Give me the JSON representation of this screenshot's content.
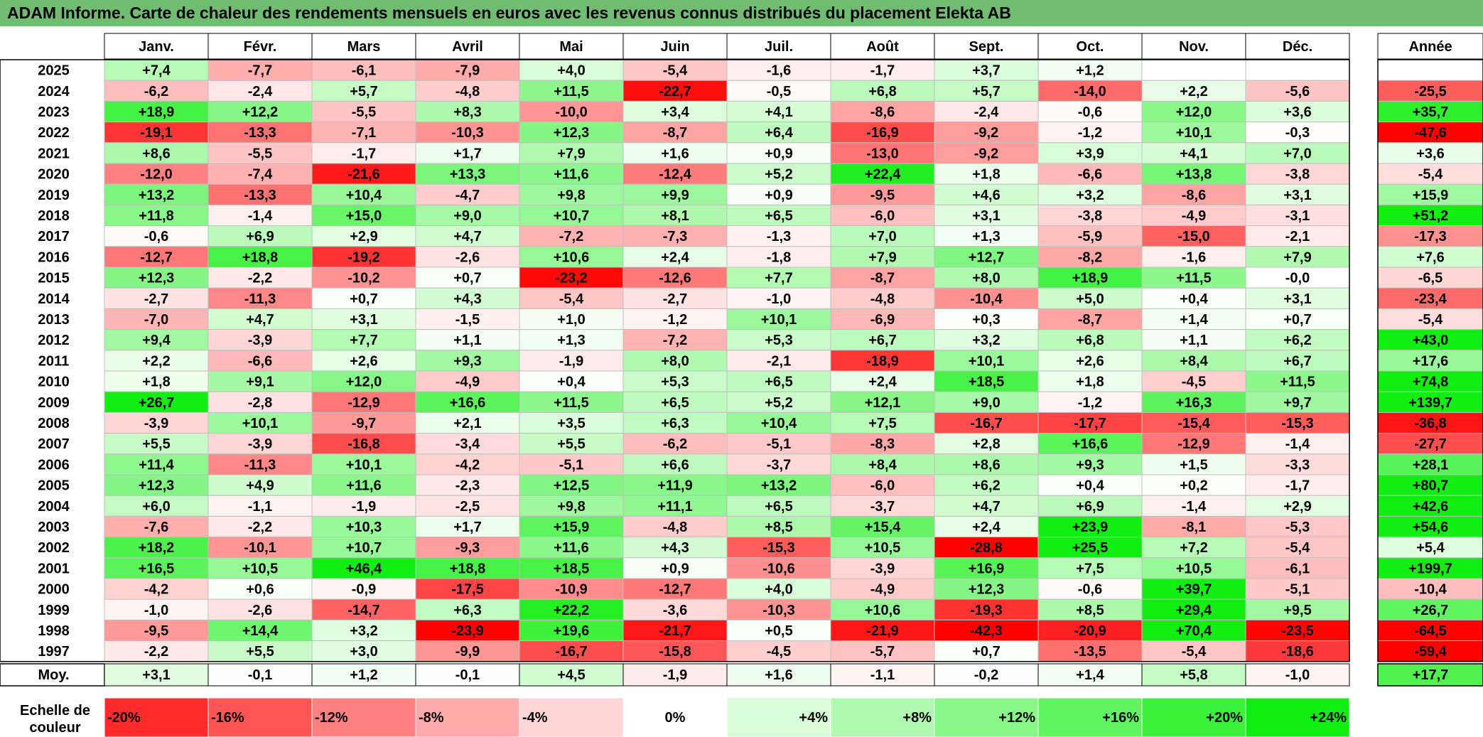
{
  "title": "ADAM Informe. Carte de chaleur des rendements mensuels en euros avec les revenus connus distribués du placement Elekta AB",
  "chart_data": {
    "type": "heatmap",
    "columns": [
      "Janv.",
      "Févr.",
      "Mars",
      "Avril",
      "Mai",
      "Juin",
      "Juil.",
      "Août",
      "Sept.",
      "Oct.",
      "Nov.",
      "Déc."
    ],
    "year_column": "Année",
    "rows": [
      {
        "year": "2025",
        "values": [
          "+7,4",
          "-7,7",
          "-6,1",
          "-7,9",
          "+4,0",
          "-5,4",
          "-1,6",
          "-1,7",
          "+3,7",
          "+1,2",
          "",
          ""
        ],
        "annual": ""
      },
      {
        "year": "2024",
        "values": [
          "-6,2",
          "-2,4",
          "+5,7",
          "-4,8",
          "+11,5",
          "-22,7",
          "-0,5",
          "+6,8",
          "+5,7",
          "-14,0",
          "+2,2",
          "-5,6"
        ],
        "annual": "-25,5"
      },
      {
        "year": "2023",
        "values": [
          "+18,9",
          "+12,2",
          "-5,5",
          "+8,3",
          "-10,0",
          "+3,4",
          "+4,1",
          "-8,6",
          "-2,4",
          "-0,6",
          "+12,0",
          "+3,6"
        ],
        "annual": "+35,7"
      },
      {
        "year": "2022",
        "values": [
          "-19,1",
          "-13,3",
          "-7,1",
          "-10,3",
          "+12,3",
          "-8,7",
          "+6,4",
          "-16,9",
          "-9,2",
          "-1,2",
          "+10,1",
          "-0,3"
        ],
        "annual": "-47,6"
      },
      {
        "year": "2021",
        "values": [
          "+8,6",
          "-5,5",
          "-1,7",
          "+1,7",
          "+7,9",
          "+1,6",
          "+0,9",
          "-13,0",
          "-9,2",
          "+3,9",
          "+4,1",
          "+7,0"
        ],
        "annual": "+3,6"
      },
      {
        "year": "2020",
        "values": [
          "-12,0",
          "-7,4",
          "-21,6",
          "+13,3",
          "+11,6",
          "-12,4",
          "+5,2",
          "+22,4",
          "+1,8",
          "-6,6",
          "+13,8",
          "-3,8"
        ],
        "annual": "-5,4"
      },
      {
        "year": "2019",
        "values": [
          "+13,2",
          "-13,3",
          "+10,4",
          "-4,7",
          "+9,8",
          "+9,9",
          "+0,9",
          "-9,5",
          "+4,6",
          "+3,2",
          "-8,6",
          "+3,1"
        ],
        "annual": "+15,9"
      },
      {
        "year": "2018",
        "values": [
          "+11,8",
          "-1,4",
          "+15,0",
          "+9,0",
          "+10,7",
          "+8,1",
          "+6,5",
          "-6,0",
          "+3,1",
          "-3,8",
          "-4,9",
          "-3,1"
        ],
        "annual": "+51,2"
      },
      {
        "year": "2017",
        "values": [
          "-0,6",
          "+6,9",
          "+2,9",
          "+4,7",
          "-7,2",
          "-7,3",
          "-1,3",
          "+7,0",
          "+1,3",
          "-5,9",
          "-15,0",
          "-2,1"
        ],
        "annual": "-17,3"
      },
      {
        "year": "2016",
        "values": [
          "-12,7",
          "+18,8",
          "-19,2",
          "-2,6",
          "+10,6",
          "+2,4",
          "-1,8",
          "+7,9",
          "+12,7",
          "-8,2",
          "-1,6",
          "+7,9"
        ],
        "annual": "+7,6"
      },
      {
        "year": "2015",
        "values": [
          "+12,3",
          "-2,2",
          "-10,2",
          "+0,7",
          "-23,2",
          "-12,6",
          "+7,7",
          "-8,7",
          "+8,0",
          "+18,9",
          "+11,5",
          "-0,0"
        ],
        "annual": "-6,5"
      },
      {
        "year": "2014",
        "values": [
          "-2,7",
          "-11,3",
          "+0,7",
          "+4,3",
          "-5,4",
          "-2,7",
          "-1,0",
          "-4,8",
          "-10,4",
          "+5,0",
          "+0,4",
          "+3,1"
        ],
        "annual": "-23,4"
      },
      {
        "year": "2013",
        "values": [
          "-7,0",
          "+4,7",
          "+3,1",
          "-1,5",
          "+1,0",
          "-1,2",
          "+10,1",
          "-6,9",
          "+0,3",
          "-8,7",
          "+1,4",
          "+0,7"
        ],
        "annual": "-5,4"
      },
      {
        "year": "2012",
        "values": [
          "+9,4",
          "-3,9",
          "+7,7",
          "+1,1",
          "+1,3",
          "-7,2",
          "+5,3",
          "+6,7",
          "+3,2",
          "+6,8",
          "+1,1",
          "+6,2"
        ],
        "annual": "+43,0"
      },
      {
        "year": "2011",
        "values": [
          "+2,2",
          "-6,6",
          "+2,6",
          "+9,3",
          "-1,9",
          "+8,0",
          "-2,1",
          "-18,9",
          "+10,1",
          "+2,6",
          "+8,4",
          "+6,7"
        ],
        "annual": "+17,6"
      },
      {
        "year": "2010",
        "values": [
          "+1,8",
          "+9,1",
          "+12,0",
          "-4,9",
          "+0,4",
          "+5,3",
          "+6,5",
          "+2,4",
          "+18,5",
          "+1,8",
          "-4,5",
          "+11,5"
        ],
        "annual": "+74,8"
      },
      {
        "year": "2009",
        "values": [
          "+26,7",
          "-2,8",
          "-12,9",
          "+16,6",
          "+11,5",
          "+6,5",
          "+5,2",
          "+12,1",
          "+9,0",
          "-1,2",
          "+16,3",
          "+9,7"
        ],
        "annual": "+139,7"
      },
      {
        "year": "2008",
        "values": [
          "-3,9",
          "+10,1",
          "-9,7",
          "+2,1",
          "+3,5",
          "+6,3",
          "+10,4",
          "+7,5",
          "-16,7",
          "-17,7",
          "-15,4",
          "-15,3"
        ],
        "annual": "-36,8"
      },
      {
        "year": "2007",
        "values": [
          "+5,5",
          "-3,9",
          "-16,8",
          "-3,4",
          "+5,5",
          "-6,2",
          "-5,1",
          "-8,3",
          "+2,8",
          "+16,6",
          "-12,9",
          "-1,4"
        ],
        "annual": "-27,7"
      },
      {
        "year": "2006",
        "values": [
          "+11,4",
          "-11,3",
          "+10,1",
          "-4,2",
          "-5,1",
          "+6,6",
          "-3,7",
          "+8,4",
          "+8,6",
          "+9,3",
          "+1,5",
          "-3,3"
        ],
        "annual": "+28,1"
      },
      {
        "year": "2005",
        "values": [
          "+12,3",
          "+4,9",
          "+11,6",
          "-2,3",
          "+12,5",
          "+11,9",
          "+13,2",
          "-6,0",
          "+6,2",
          "+0,4",
          "+0,2",
          "-1,7"
        ],
        "annual": "+80,7"
      },
      {
        "year": "2004",
        "values": [
          "+6,0",
          "-1,1",
          "-1,9",
          "-2,5",
          "+9,8",
          "+11,1",
          "+6,5",
          "-3,7",
          "+4,7",
          "+6,9",
          "-1,4",
          "+2,9"
        ],
        "annual": "+42,6"
      },
      {
        "year": "2003",
        "values": [
          "-7,6",
          "-2,2",
          "+10,3",
          "+1,7",
          "+15,9",
          "-4,8",
          "+8,5",
          "+15,4",
          "+2,4",
          "+23,9",
          "-8,1",
          "-5,3"
        ],
        "annual": "+54,6"
      },
      {
        "year": "2002",
        "values": [
          "+18,2",
          "-10,1",
          "+10,7",
          "-9,3",
          "+11,6",
          "+4,3",
          "-15,3",
          "+10,5",
          "-28,8",
          "+25,5",
          "+7,2",
          "-5,4"
        ],
        "annual": "+5,4"
      },
      {
        "year": "2001",
        "values": [
          "+16,5",
          "+10,5",
          "+46,4",
          "+18,8",
          "+18,5",
          "+0,9",
          "-10,6",
          "-3,9",
          "+16,9",
          "+7,5",
          "+10,5",
          "-6,1"
        ],
        "annual": "+199,7"
      },
      {
        "year": "2000",
        "values": [
          "-4,2",
          "+0,6",
          "-0,9",
          "-17,5",
          "-10,9",
          "-12,7",
          "+4,0",
          "-4,9",
          "+12,3",
          "-0,6",
          "+39,7",
          "-5,1"
        ],
        "annual": "-10,4"
      },
      {
        "year": "1999",
        "values": [
          "-1,0",
          "-2,6",
          "-14,7",
          "+6,3",
          "+22,2",
          "-3,6",
          "-10,3",
          "+10,6",
          "-19,3",
          "+8,5",
          "+29,4",
          "+9,5"
        ],
        "annual": "+26,7"
      },
      {
        "year": "1998",
        "values": [
          "-9,5",
          "+14,4",
          "+3,2",
          "-23,9",
          "+19,6",
          "-21,7",
          "+0,5",
          "-21,9",
          "-42,3",
          "-20,9",
          "+70,4",
          "-23,5"
        ],
        "annual": "-64,5"
      },
      {
        "year": "1997",
        "values": [
          "-2,2",
          "+5,5",
          "+3,0",
          "-9,9",
          "-16,7",
          "-15,8",
          "-4,5",
          "-5,7",
          "+0,7",
          "-13,5",
          "-5,4",
          "-18,6"
        ],
        "annual": "-59,4"
      }
    ],
    "average": {
      "label": "Moy.",
      "values": [
        "+3,1",
        "-0,1",
        "+1,2",
        "-0,1",
        "+4,5",
        "-1,9",
        "+1,6",
        "-1,1",
        "-0,2",
        "+1,4",
        "+5,8",
        "-1,0"
      ],
      "annual": "+17,7"
    },
    "scale": {
      "label_line1": "Echelle de",
      "label_line2": "couleur",
      "steps": [
        "-20%",
        "-16%",
        "-12%",
        "-8%",
        "-4%",
        "0%",
        "+4%",
        "+8%",
        "+12%",
        "+16%",
        "+20%",
        "+24%"
      ],
      "step_values": [
        -20,
        -16,
        -12,
        -8,
        -4,
        0,
        4,
        8,
        12,
        16,
        20,
        24
      ]
    },
    "colors": {
      "title_bg": "#70bd72",
      "negative_max": "#ff0000",
      "positive_max": "#11ee11",
      "neutral": "#ffffff"
    }
  }
}
